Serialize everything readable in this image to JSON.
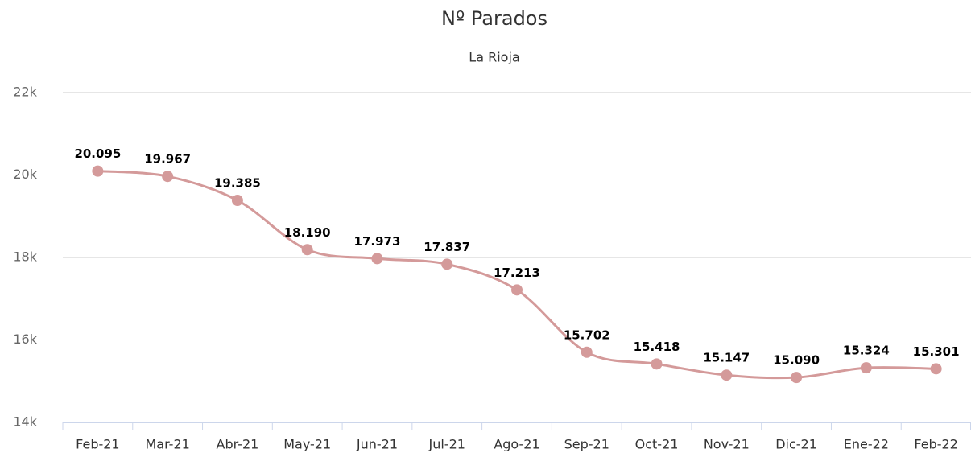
{
  "chart_data": {
    "type": "line",
    "title": "Nº Parados",
    "subtitle": "La Rioja",
    "categories": [
      "Feb-21",
      "Mar-21",
      "Abr-21",
      "May-21",
      "Jun-21",
      "Jul-21",
      "Ago-21",
      "Sep-21",
      "Oct-21",
      "Nov-21",
      "Dic-21",
      "Ene-22",
      "Feb-22"
    ],
    "values": [
      20095,
      19967,
      19385,
      18190,
      17973,
      17837,
      17213,
      15702,
      15418,
      15147,
      15090,
      15324,
      15301
    ],
    "value_labels": [
      "20.095",
      "19.967",
      "19.385",
      "18.190",
      "17.973",
      "17.837",
      "17.213",
      "15.702",
      "15.418",
      "15.147",
      "15.090",
      "15.324",
      "15.301"
    ],
    "color": "#d49a9a",
    "ylim": [
      14000,
      22000
    ],
    "yticks": [
      {
        "value": 14000,
        "label": "14k"
      },
      {
        "value": 16000,
        "label": "16k"
      },
      {
        "value": 18000,
        "label": "18k"
      },
      {
        "value": 20000,
        "label": "20k"
      },
      {
        "value": 22000,
        "label": "22k"
      }
    ],
    "grid": true
  }
}
